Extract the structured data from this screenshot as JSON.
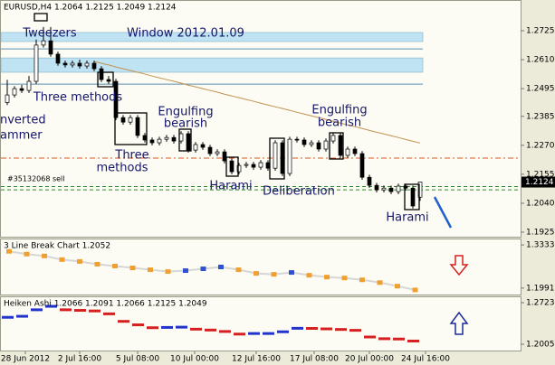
{
  "chart_data": [
    {
      "type": "candlestick",
      "title": "EURUSD,H4  1.2064 1.2125 1.2049 1.2124",
      "open": [
        1.244,
        1.247,
        1.2495,
        1.2488,
        1.2524,
        1.2668,
        1.2685,
        1.2632,
        1.2596,
        1.2589,
        1.2596,
        1.2585,
        1.2596,
        1.2574,
        1.2531,
        1.2524,
        1.238,
        1.2362,
        1.238,
        1.2309,
        1.2291,
        1.228,
        1.2294,
        1.2301,
        1.2287,
        1.2316,
        1.2251,
        1.2273,
        1.2262,
        1.2237,
        1.2244,
        1.2208,
        1.2165,
        1.219,
        1.2194,
        1.2183,
        1.2201,
        1.2179,
        1.228,
        1.2158,
        1.2294,
        1.2291,
        1.2273,
        1.228,
        1.2255,
        1.2287,
        1.2309,
        1.223,
        1.2255,
        1.2237,
        1.2143,
        1.2111,
        1.2093,
        1.21,
        1.2086,
        1.2108,
        1.21,
        1.2064
      ],
      "high": [
        1.253,
        1.2505,
        1.251,
        1.2545,
        1.269,
        1.274,
        1.274,
        1.2642,
        1.2606,
        1.2606,
        1.261,
        1.2606,
        1.2606,
        1.2584,
        1.2545,
        1.2534,
        1.239,
        1.239,
        1.239,
        1.2319,
        1.2301,
        1.2304,
        1.2311,
        1.2311,
        1.2326,
        1.2326,
        1.2283,
        1.2283,
        1.2272,
        1.2254,
        1.2254,
        1.2218,
        1.22,
        1.2204,
        1.2204,
        1.2211,
        1.2211,
        1.229,
        1.229,
        1.2304,
        1.2304,
        1.2301,
        1.229,
        1.229,
        1.2297,
        1.2319,
        1.2319,
        1.2265,
        1.2265,
        1.2247,
        1.2153,
        1.2121,
        1.211,
        1.211,
        1.2118,
        1.2118,
        1.211,
        1.2125
      ],
      "low": [
        1.243,
        1.246,
        1.2478,
        1.2478,
        1.2514,
        1.2658,
        1.2622,
        1.2586,
        1.2579,
        1.2579,
        1.2575,
        1.2575,
        1.2564,
        1.2521,
        1.2514,
        1.237,
        1.2352,
        1.2352,
        1.2299,
        1.2281,
        1.227,
        1.227,
        1.2284,
        1.2277,
        1.2277,
        1.2241,
        1.2241,
        1.2252,
        1.2227,
        1.2227,
        1.2198,
        1.2155,
        1.2155,
        1.218,
        1.2173,
        1.2173,
        1.2169,
        1.2169,
        1.2148,
        1.2148,
        1.2281,
        1.2263,
        1.2263,
        1.2245,
        1.2245,
        1.2277,
        1.222,
        1.222,
        1.2227,
        1.2133,
        1.2101,
        1.2083,
        1.2083,
        1.2076,
        1.2076,
        1.209,
        1.2019,
        1.2049
      ],
      "close": [
        1.247,
        1.2495,
        1.2488,
        1.2524,
        1.2668,
        1.2685,
        1.2632,
        1.2596,
        1.2589,
        1.2596,
        1.2585,
        1.2596,
        1.2574,
        1.2531,
        1.2524,
        1.238,
        1.2362,
        1.238,
        1.2309,
        1.2291,
        1.228,
        1.2294,
        1.2301,
        1.2287,
        1.2316,
        1.2251,
        1.2273,
        1.2262,
        1.2237,
        1.2244,
        1.2208,
        1.2165,
        1.219,
        1.2194,
        1.2183,
        1.2201,
        1.2179,
        1.228,
        1.2158,
        1.2294,
        1.2291,
        1.2273,
        1.228,
        1.2255,
        1.2287,
        1.2309,
        1.223,
        1.2255,
        1.2237,
        1.2143,
        1.2111,
        1.2093,
        1.21,
        1.2086,
        1.2108,
        1.21,
        1.2029,
        1.2124
      ],
      "up_color": "#ffffff",
      "down_color": "#000000",
      "ylim": [
        1.1907,
        1.2847
      ],
      "yticks": [
        1.2725,
        {
          "value": 1.261,
          "label": "1.2610"
        },
        1.2495,
        1.2385,
        {
          "value": 1.227,
          "label": "1.2270"
        },
        1.2155,
        {
          "value": 1.204,
          "label": "1.2040"
        },
        1.1925
      ],
      "last_price": 1.2124,
      "order_label": "#35132068 sell",
      "ma": {
        "color": "#c39250",
        "values": [
          null,
          null,
          null,
          null,
          null,
          null,
          null,
          null,
          null,
          null,
          null,
          null,
          1.2603,
          1.2596,
          1.2589,
          1.2581,
          1.2574,
          1.2567,
          1.256,
          1.2553,
          1.2545,
          1.2538,
          1.2531,
          1.2524,
          1.2517,
          1.2509,
          1.2502,
          1.2495,
          1.2488,
          1.2481,
          1.2473,
          1.2466,
          1.2459,
          1.2452,
          1.2445,
          1.2437,
          1.243,
          1.2423,
          1.2416,
          1.2409,
          1.2401,
          1.2394,
          1.2387,
          1.238,
          1.2373,
          1.2365,
          1.2358,
          1.2351,
          1.2344,
          1.2337,
          1.2329,
          1.2322,
          1.2315,
          1.2308,
          1.2301,
          1.2293,
          1.2286,
          1.2279
        ]
      },
      "zones": [
        {
          "from": 1.2682,
          "to": 1.2718,
          "color": "#bfe3f2"
        },
        {
          "from": 1.256,
          "to": 1.2617,
          "color": "#bfe3f2"
        }
      ],
      "levels": [
        {
          "value": 1.2653,
          "color": "#5a8fb0",
          "style": "solid"
        },
        {
          "value": 1.2513,
          "color": "#5a8fb0",
          "style": "solid"
        },
        {
          "value": 1.2219,
          "color": "#e0561e",
          "style": "dashdot"
        },
        {
          "value": 1.2106,
          "color": "#2a8a2a",
          "style": "dashed"
        },
        {
          "value": 1.2093,
          "color": "#2a8a2a",
          "style": "dashed"
        }
      ],
      "annotations": [
        "Tweezers",
        "Window 2012.01.09",
        "nverted",
        "ammer",
        "Three methods",
        "Three",
        "methods",
        "Engulfing",
        "bearish",
        "Harami",
        "Deliberation",
        "Engulfing",
        "bearish",
        "Harami"
      ]
    },
    {
      "type": "line_break",
      "title": "3 Line Break Chart 1.2052",
      "values": [
        1.3133,
        1.3048,
        1.299,
        1.2876,
        1.2819,
        1.2733,
        1.2676,
        1.2619,
        1.2562,
        1.2505,
        1.2534,
        1.2591,
        1.2648,
        1.2562,
        1.2448,
        1.2419,
        1.2477,
        1.2391,
        1.2334,
        1.2305,
        1.2248,
        1.2162,
        1.2052,
        1.1934
      ],
      "colors": [
        "#f0a030",
        "#f0a030",
        "#f0a030",
        "#f0a030",
        "#f0a030",
        "#f0a030",
        "#f0a030",
        "#f0a030",
        "#f0a030",
        "#f0a030",
        "#3050d0",
        "#3050d0",
        "#3050d0",
        "#f0a030",
        "#f0a030",
        "#f0a030",
        "#3050d0",
        "#f0a030",
        "#f0a030",
        "#f0a030",
        "#f0a030",
        "#f0a030",
        "#f0a030",
        "#f0a030"
      ],
      "ylim": [
        1.1791,
        1.3504
      ],
      "yticks": [
        1.3333,
        1.1991
      ]
    },
    {
      "type": "heiken_ashi",
      "title": "Heiken Ashi 1.2066 1.2091 1.2066 1.2125 1.2049",
      "values": [
        1.247,
        1.2488,
        1.26,
        1.266,
        1.26,
        1.259,
        1.258,
        1.253,
        1.24,
        1.234,
        1.229,
        1.2295,
        1.23,
        1.2265,
        1.225,
        1.2225,
        1.218,
        1.219,
        1.219,
        1.222,
        1.228,
        1.2278,
        1.227,
        1.226,
        1.2245,
        1.213,
        1.21,
        1.2095,
        1.206
      ],
      "up_color": "#2233cc",
      "down_color": "#d42020",
      "ylim": [
        1.188,
        1.2817
      ],
      "yticks": [
        1.2723,
        1.2005
      ]
    }
  ],
  "time_axis": {
    "labels": [
      "28 Jun 2012",
      "2 Jul 16:00",
      "5 Jul 08:00",
      "10 Jul 00:00",
      "12 Jul 16:00",
      "17 Jul 08:00",
      "20 Jul 00:00",
      "24 Jul 16:00"
    ]
  }
}
